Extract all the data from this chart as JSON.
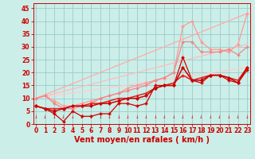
{
  "bg_color": "#cceee8",
  "grid_color": "#99cccc",
  "xlabel": "Vent moyen/en rafales ( km/h )",
  "xlabel_color": "#cc0000",
  "xlabel_fontsize": 7,
  "tick_color": "#cc0000",
  "ylim": [
    0,
    47
  ],
  "xlim": [
    -0.3,
    23.3
  ],
  "yticks": [
    0,
    5,
    10,
    15,
    20,
    25,
    30,
    35,
    40,
    45
  ],
  "xticks": [
    0,
    1,
    2,
    3,
    4,
    5,
    6,
    7,
    8,
    9,
    10,
    11,
    12,
    13,
    14,
    15,
    16,
    17,
    18,
    19,
    20,
    21,
    22,
    23
  ],
  "series": [
    {
      "x": [
        0,
        23
      ],
      "y": [
        10,
        43
      ],
      "color": "#ffaaaa",
      "lw": 0.9,
      "marker": null,
      "ms": 0
    },
    {
      "x": [
        0,
        23
      ],
      "y": [
        10,
        31
      ],
      "color": "#ffbbbb",
      "lw": 0.9,
      "marker": null,
      "ms": 0
    },
    {
      "x": [
        0,
        23
      ],
      "y": [
        10,
        22
      ],
      "color": "#ffcccc",
      "lw": 0.9,
      "marker": null,
      "ms": 0
    },
    {
      "x": [
        0,
        1,
        2,
        3,
        4,
        5,
        6,
        7,
        8,
        9,
        10,
        11,
        12,
        13,
        14,
        15,
        16,
        17,
        18,
        19,
        20,
        21,
        22,
        23
      ],
      "y": [
        10,
        11,
        9,
        7,
        7,
        8,
        9,
        10,
        11,
        12,
        14,
        15,
        16,
        17,
        18,
        20,
        38,
        40,
        32,
        29,
        29,
        28,
        31,
        43
      ],
      "color": "#ff9999",
      "lw": 0.9,
      "marker": "D",
      "ms": 2.0
    },
    {
      "x": [
        0,
        1,
        2,
        3,
        4,
        5,
        6,
        7,
        8,
        9,
        10,
        11,
        12,
        13,
        14,
        15,
        16,
        17,
        18,
        19,
        20,
        21,
        22,
        23
      ],
      "y": [
        10,
        11,
        8,
        6,
        6,
        7,
        8,
        10,
        11,
        12,
        13,
        14,
        15,
        17,
        18,
        20,
        32,
        32,
        28,
        28,
        28,
        29,
        27,
        30
      ],
      "color": "#ee8888",
      "lw": 0.9,
      "marker": "D",
      "ms": 2.0
    },
    {
      "x": [
        0,
        1,
        2,
        3,
        4,
        5,
        6,
        7,
        8,
        9,
        10,
        11,
        12,
        13,
        14,
        15,
        16,
        17,
        18,
        19,
        20,
        21,
        22,
        23
      ],
      "y": [
        7,
        6,
        6,
        6,
        7,
        7,
        8,
        8,
        9,
        10,
        10,
        11,
        12,
        14,
        15,
        16,
        19,
        17,
        18,
        19,
        19,
        18,
        17,
        22
      ],
      "color": "#dd2222",
      "lw": 1.1,
      "marker": "^",
      "ms": 2.2
    },
    {
      "x": [
        0,
        1,
        2,
        3,
        4,
        5,
        6,
        7,
        8,
        9,
        10,
        11,
        12,
        13,
        14,
        15,
        16,
        17,
        18,
        19,
        20,
        21,
        22,
        23
      ],
      "y": [
        7,
        6,
        5,
        6,
        7,
        7,
        7,
        8,
        8,
        9,
        10,
        10,
        11,
        14,
        15,
        15,
        22,
        17,
        17,
        19,
        19,
        18,
        16,
        22
      ],
      "color": "#cc0000",
      "lw": 1.1,
      "marker": "D",
      "ms": 2.2
    },
    {
      "x": [
        0,
        1,
        2,
        3,
        4,
        5,
        6,
        7,
        8,
        9,
        10,
        11,
        12,
        13,
        14,
        15,
        16,
        17,
        18,
        19,
        20,
        21,
        22,
        23
      ],
      "y": [
        7,
        6,
        4,
        1,
        5,
        3,
        3,
        4,
        4,
        8,
        8,
        7,
        8,
        15,
        15,
        15,
        26,
        17,
        16,
        19,
        19,
        17,
        16,
        21
      ],
      "color": "#cc0000",
      "lw": 0.9,
      "marker": "P",
      "ms": 2.5
    }
  ],
  "wind_arrows": [
    0,
    1,
    2,
    3,
    4,
    5,
    6,
    7,
    8,
    9,
    10,
    11,
    12,
    13,
    14,
    15,
    16,
    17,
    18,
    19,
    20,
    21,
    22,
    23
  ]
}
